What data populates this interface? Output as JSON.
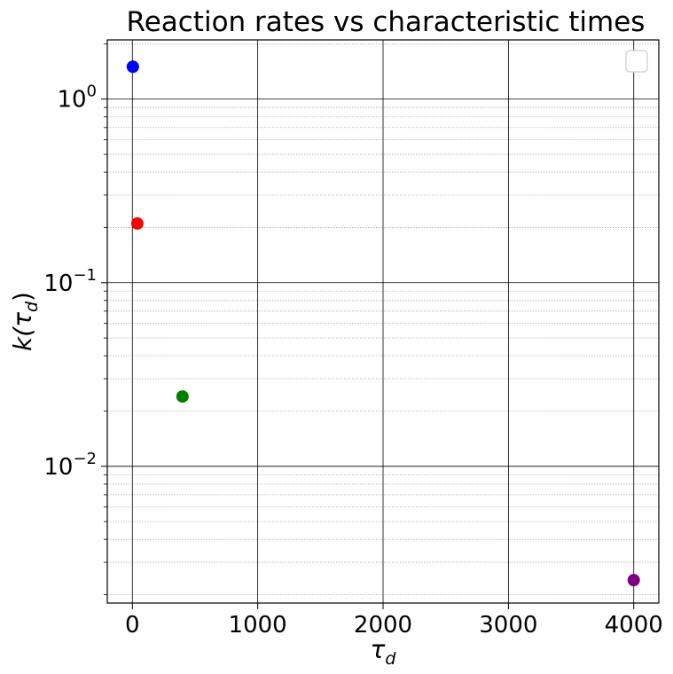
{
  "chart_data": {
    "type": "scatter",
    "title": "Reaction rates vs characteristic times",
    "xlabel": "τ_d",
    "ylabel": "k(τ_d)",
    "xlabel_parts": {
      "base": "τ",
      "sub": "d"
    },
    "ylabel_parts": {
      "pre": "k(",
      "base": "τ",
      "sub": "d",
      "post": ")"
    },
    "x_scale": "linear",
    "y_scale": "log",
    "xlim": [
      -200,
      4200
    ],
    "ylim": [
      0.0018,
      2.1
    ],
    "xticks": [
      0,
      1000,
      2000,
      3000,
      4000
    ],
    "xtick_labels": [
      "0",
      "1000",
      "2000",
      "3000",
      "4000"
    ],
    "yticks": [
      {
        "value": 1,
        "base": "10",
        "exp": "0"
      },
      {
        "value": 0.1,
        "base": "10",
        "exp": "−1"
      },
      {
        "value": 0.01,
        "base": "10",
        "exp": "−2"
      }
    ],
    "grid": {
      "major": true,
      "minor": true,
      "minor_style": "dotted"
    },
    "legend": {
      "placement": "top-right",
      "entries": []
    },
    "points": [
      {
        "x": 4,
        "y": 1.5,
        "color": "#0000ff"
      },
      {
        "x": 40,
        "y": 0.21,
        "color": "#ff0000"
      },
      {
        "x": 400,
        "y": 0.024,
        "color": "#007f00"
      },
      {
        "x": 4000,
        "y": 0.0024,
        "color": "#800080"
      }
    ]
  }
}
